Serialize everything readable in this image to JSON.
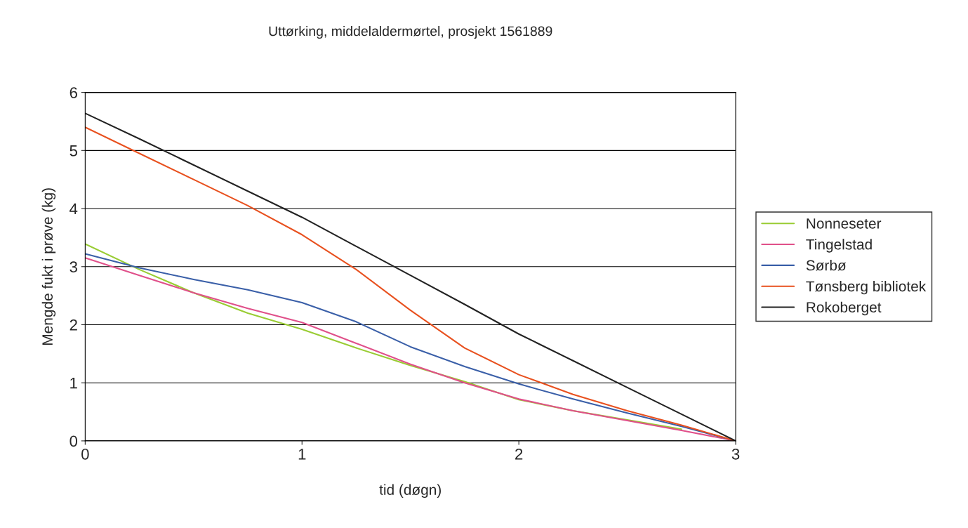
{
  "chart_data": {
    "type": "line",
    "title": "Uttørking, middelaldermørtel, prosjekt 1561889",
    "xlabel": "tid (døgn)",
    "ylabel": "Mengde fukt i prøve (kg)",
    "x": [
      0,
      0.25,
      0.5,
      0.75,
      1,
      1.25,
      1.5,
      1.75,
      2,
      2.25,
      2.5,
      2.75,
      3
    ],
    "xlim": [
      0,
      3
    ],
    "xticks": [
      0,
      1,
      2,
      3
    ],
    "ylim": [
      0,
      6
    ],
    "yticks": [
      0,
      1,
      2,
      3,
      4,
      5,
      6
    ],
    "grid": "y",
    "legend": "right",
    "marker": "none",
    "line_style": "solid",
    "series": [
      {
        "name": "Nonneseter",
        "color": "#99cc33",
        "values": [
          3.39,
          2.95,
          2.55,
          2.2,
          1.92,
          1.6,
          1.3,
          1.02,
          0.71,
          0.52,
          0.36,
          0.2,
          null
        ]
      },
      {
        "name": "Tingelstad",
        "color": "#e0508a",
        "values": [
          3.15,
          2.85,
          2.55,
          2.28,
          2.04,
          1.68,
          1.32,
          1.0,
          0.72,
          0.52,
          0.35,
          0.18,
          0
        ]
      },
      {
        "name": "Sørbø",
        "color": "#3a5fa8",
        "values": [
          3.22,
          2.98,
          2.78,
          2.6,
          2.38,
          2.05,
          1.62,
          1.28,
          0.98,
          0.72,
          0.48,
          0.25,
          0
        ]
      },
      {
        "name": "Tønsberg bibliotek",
        "color": "#e8501e",
        "values": [
          5.4,
          4.95,
          4.5,
          4.05,
          3.55,
          2.95,
          2.25,
          1.6,
          1.14,
          0.8,
          0.52,
          0.27,
          0
        ]
      },
      {
        "name": "Rokoberget",
        "color": "#222222",
        "values": [
          5.64,
          5.2,
          4.75,
          4.3,
          3.85,
          3.35,
          2.85,
          2.35,
          1.84,
          1.38,
          0.92,
          0.46,
          0
        ]
      }
    ]
  }
}
